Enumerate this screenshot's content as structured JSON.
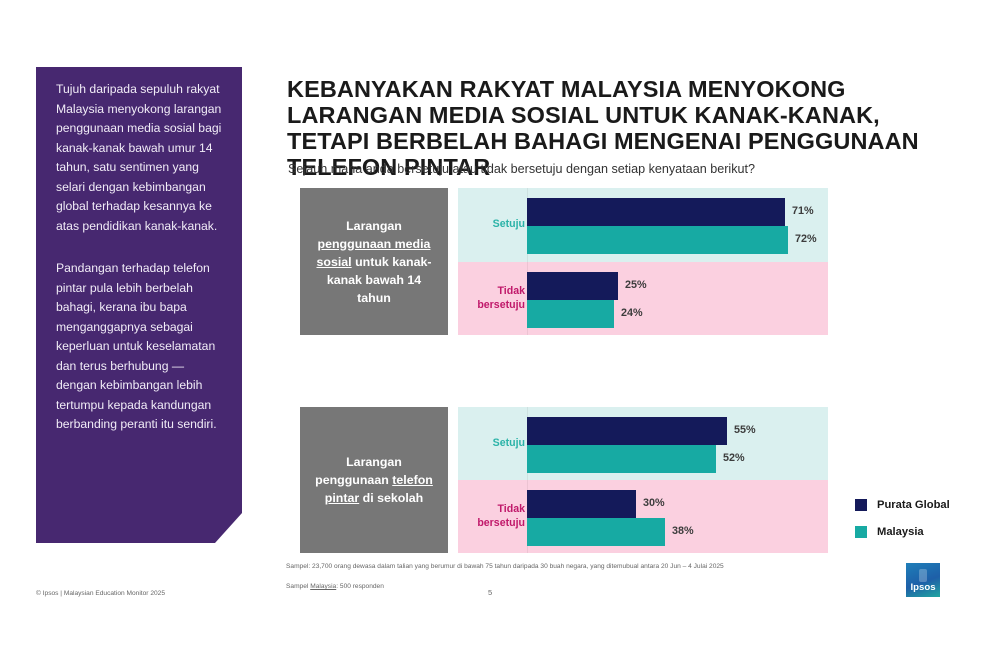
{
  "side_panel": {
    "paragraphs": [
      "Tujuh daripada sepuluh rakyat Malaysia menyokong larangan penggunaan media sosial bagi kanak-kanak bawah umur 14 tahun, satu sentimen yang selari dengan kebimbangan global terhadap kesannya ke atas pendidikan kanak-kanak.",
      "Pandangan terhadap telefon pintar pula lebih berbelah bahagi, kerana ibu bapa menganggapnya sebagai keperluan untuk keselamatan dan terus berhubung — dengan kebimbangan lebih tertumpu kepada kandungan berbanding peranti itu sendiri."
    ]
  },
  "header": {
    "title": "KEBANYAKAN RAKYAT MALAYSIA MENYOKONG LARANGAN MEDIA SOSIAL UNTUK KANAK-KANAK, TETAPI BERBELAH BAHAGI MENGENAI PENGGUNAAN TELEFON PINTAR",
    "question": "Sejauh mana anda bersetuju atau tidak bersetuju dengan setiap kenyataan berikut?"
  },
  "statements": [
    {
      "parts": [
        {
          "text": "Larangan ",
          "u": false
        },
        {
          "text": "penggunaan media sosial",
          "u": true
        },
        {
          "text": " untuk kanak-kanak bawah 14 tahun",
          "u": false
        }
      ]
    },
    {
      "parts": [
        {
          "text": "Larangan penggunaan ",
          "u": false
        },
        {
          "text": "telefon pintar",
          "u": true
        },
        {
          "text": " di sekolah",
          "u": false
        }
      ]
    }
  ],
  "labels": {
    "agree": "Setuju",
    "disagree_line1": "Tidak",
    "disagree_line2": "bersetuju"
  },
  "colors": {
    "global": "#141a5a",
    "malaysia": "#17aaa3",
    "panel": "#472870",
    "agree_band": "#daf0ef",
    "disagree_band": "#fbd0e0"
  },
  "chart_data": {
    "type": "bar",
    "orientation": "horizontal",
    "title": "KEBANYAKAN RAKYAT MALAYSIA MENYOKONG LARANGAN MEDIA SOSIAL UNTUK KANAK-KANAK, TETAPI BERBELAH BAHAGI MENGENAI PENGGUNAAN TELEFON PINTAR",
    "subtitle": "Sejauh mana anda bersetuju atau tidak bersetuju dengan setiap kenyataan berikut?",
    "legend": [
      "Purata Global",
      "Malaysia"
    ],
    "legend_position": "right-bottom",
    "unit": "%",
    "groups": [
      {
        "statement": "Larangan penggunaan media sosial untuk kanak-kanak bawah 14 tahun",
        "categories": [
          "Setuju",
          "Tidak bersetuju"
        ],
        "series": [
          {
            "name": "Purata Global",
            "values": [
              71,
              25
            ]
          },
          {
            "name": "Malaysia",
            "values": [
              72,
              24
            ]
          }
        ]
      },
      {
        "statement": "Larangan penggunaan telefon pintar di sekolah",
        "categories": [
          "Setuju",
          "Tidak bersetuju"
        ],
        "series": [
          {
            "name": "Purata Global",
            "values": [
              55,
              30
            ]
          },
          {
            "name": "Malaysia",
            "values": [
              52,
              38
            ]
          }
        ]
      }
    ]
  },
  "legend": {
    "items": [
      {
        "label": "Purata Global",
        "color": "#141a5a"
      },
      {
        "label": "Malaysia",
        "color": "#17aaa3"
      }
    ]
  },
  "footer": {
    "sample_note": "Sampel: 23,700 orang dewasa dalam talian yang berumur di bawah 75 tahun daripada 30 buah negara, yang ditemubual antara 20 Jun – 4 Julai 2025",
    "sample_malaysia_prefix": "Sampel ",
    "sample_malaysia_link": "Malaysia",
    "sample_malaysia_suffix": ": 500 responden",
    "page_number": "5",
    "copyright": "© Ipsos | Malaysian Education Monitor 2025",
    "logo_text": "Ipsos"
  }
}
